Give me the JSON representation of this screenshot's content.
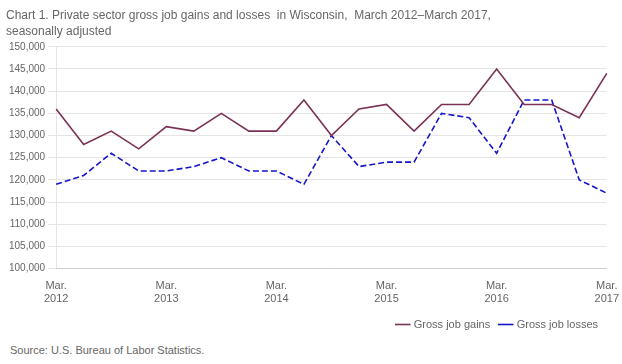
{
  "chart_data": {
    "type": "line",
    "title": "Chart 1. Private sector gross job gains and losses  in Wisconsin,  March 2012–March 2017,",
    "subtitle": "seasonally adjusted",
    "annotations": [
      "Source: U.S. Bureau of Labor Statistics."
    ],
    "categories": [
      "Mar.\n2012",
      null,
      null,
      null,
      "Mar.\n2013",
      null,
      null,
      null,
      "Mar.\n2014",
      null,
      null,
      null,
      "Mar.\n2015",
      null,
      null,
      null,
      "Mar.\n2016",
      null,
      null,
      null,
      "Mar.\n2017"
    ],
    "series": [
      {
        "name": "Gross job gains",
        "color": "#7B3055",
        "line_style": "solid",
        "values": [
          136000,
          128000,
          131000,
          127000,
          132000,
          131000,
          135000,
          131000,
          131000,
          138000,
          130000,
          136000,
          137000,
          131000,
          137000,
          137000,
          145000,
          137000,
          137000,
          134000,
          144000
        ]
      },
      {
        "name": "Gross job losses",
        "color": "#1515CC",
        "line_style": "dashed",
        "values": [
          119000,
          121000,
          126000,
          122000,
          122000,
          123000,
          125000,
          122000,
          122000,
          119000,
          130000,
          123000,
          124000,
          124000,
          135000,
          134000,
          126000,
          138000,
          138000,
          120000,
          117000
        ]
      }
    ],
    "ylim": [
      100000,
      150000
    ],
    "yticks": [
      {
        "value": 100000,
        "label": "100,000"
      },
      {
        "value": 105000,
        "label": "105,000"
      },
      {
        "value": 110000,
        "label": "110,000"
      },
      {
        "value": 115000,
        "label": "115,000"
      },
      {
        "value": 120000,
        "label": "120,000"
      },
      {
        "value": 125000,
        "label": "125,000"
      },
      {
        "value": 130000,
        "label": "130,000"
      },
      {
        "value": 135000,
        "label": "135,000"
      },
      {
        "value": 140000,
        "label": "140,000"
      },
      {
        "value": 145000,
        "label": "145,000"
      },
      {
        "value": 150000,
        "label": "150,000"
      }
    ],
    "grid": true,
    "legend": "lower right"
  }
}
